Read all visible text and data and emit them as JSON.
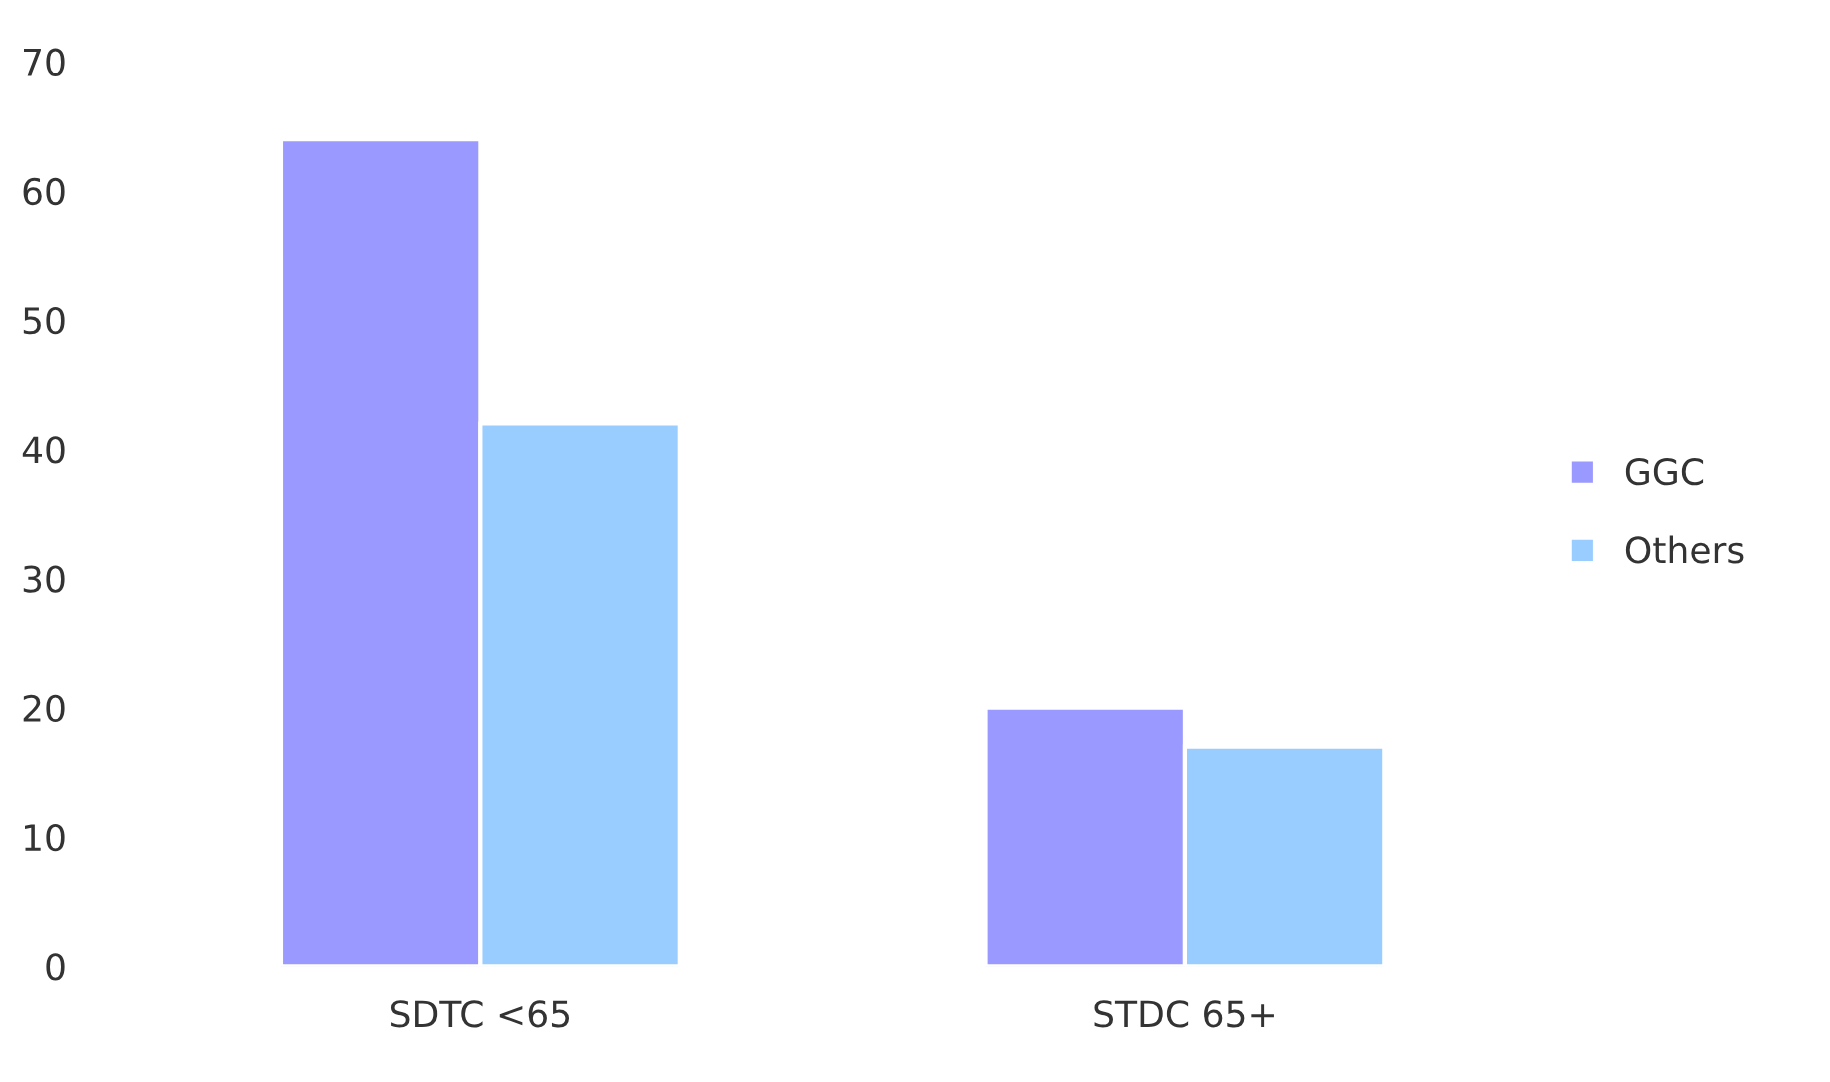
{
  "chart_data": {
    "type": "bar",
    "categories": [
      "SDTC <65",
      "STDC 65+"
    ],
    "series": [
      {
        "name": "GGC",
        "color": "#9999ff",
        "values": [
          64,
          20
        ]
      },
      {
        "name": "Others",
        "color": "#99ccff",
        "values": [
          42,
          17
        ]
      }
    ],
    "ylim": [
      0,
      70
    ],
    "yticks": [
      0,
      10,
      20,
      30,
      40,
      50,
      60,
      70
    ],
    "grid": false,
    "legend": "right"
  }
}
